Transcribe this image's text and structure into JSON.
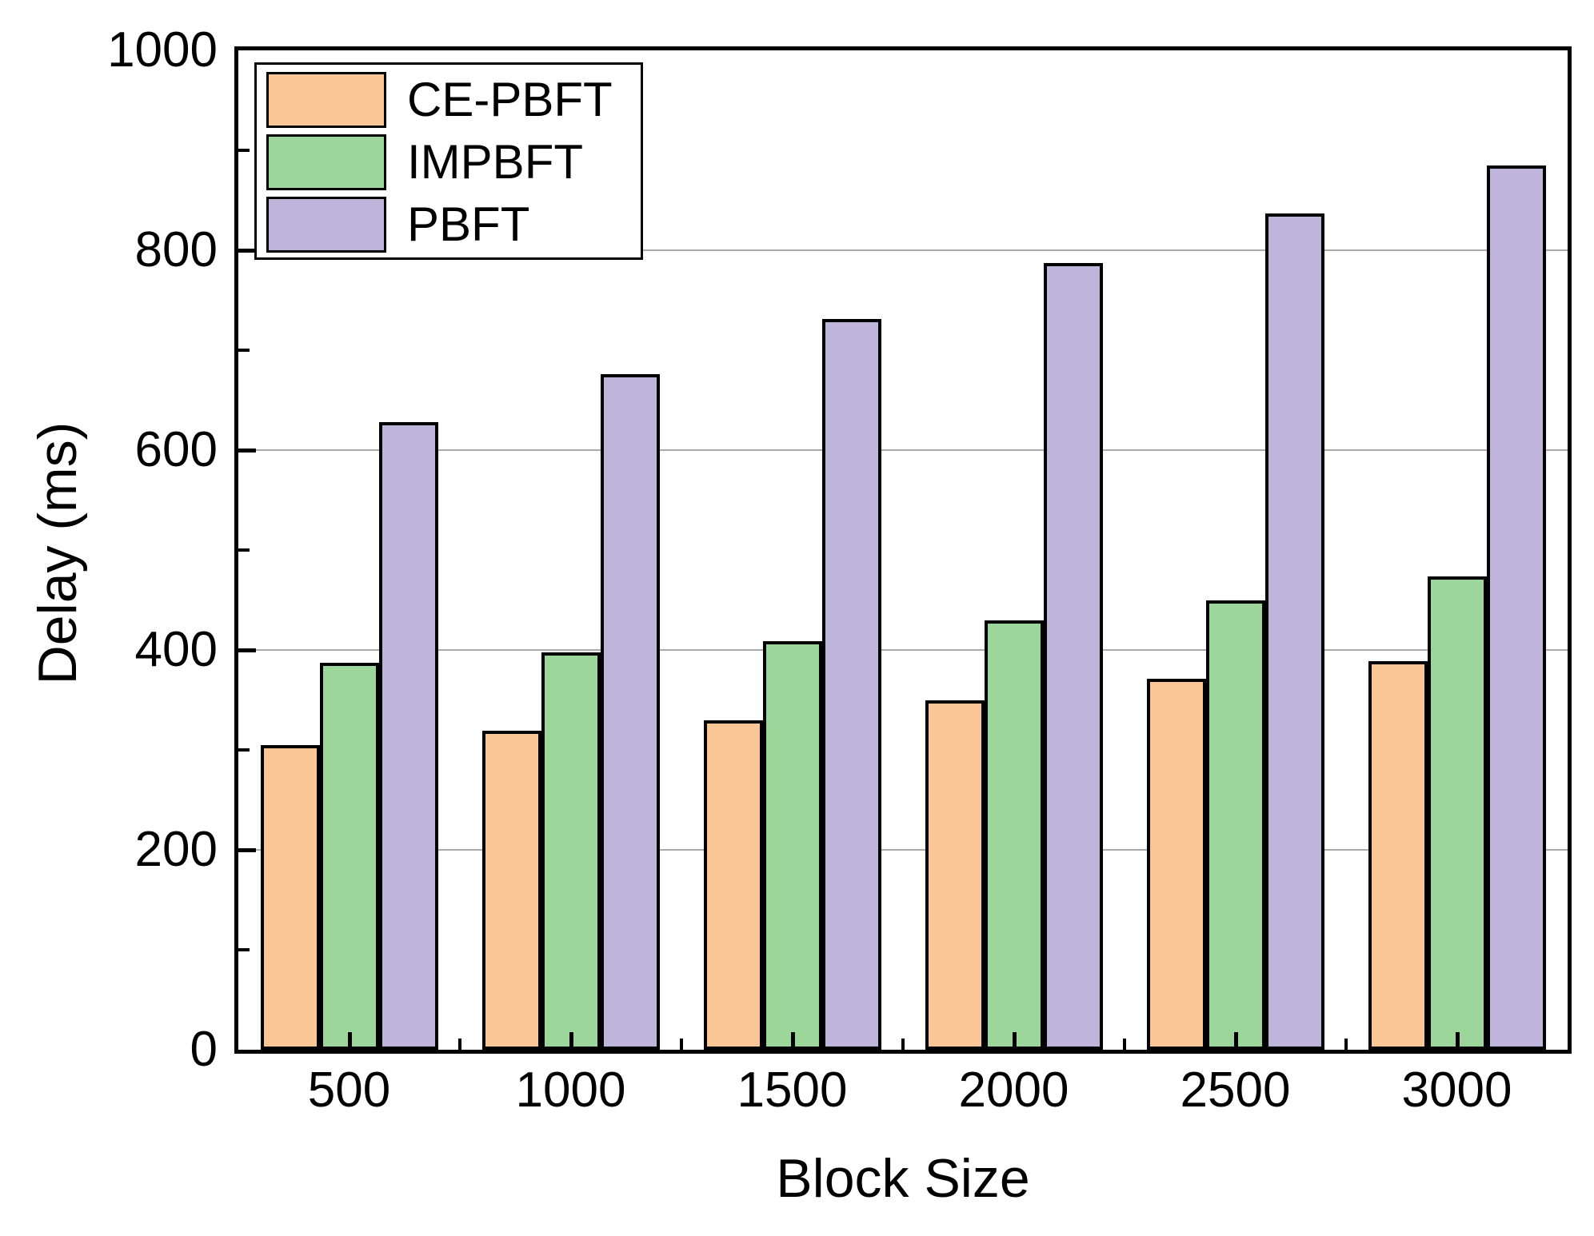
{
  "chart_data": {
    "type": "bar",
    "title": "",
    "xlabel": "Block Size",
    "ylabel": "Delay (ms)",
    "categories": [
      "500",
      "1000",
      "1500",
      "2000",
      "2500",
      "3000"
    ],
    "series": [
      {
        "name": "CE-PBFT",
        "color": "#FBC695",
        "values": [
          305,
          319,
          330,
          350,
          371,
          389
        ]
      },
      {
        "name": "IMPBFT",
        "color": "#9CD69B",
        "values": [
          387,
          398,
          409,
          430,
          450,
          474
        ]
      },
      {
        "name": "PBFT",
        "color": "#BFB5DA",
        "values": [
          628,
          676,
          731,
          787,
          837,
          885
        ]
      }
    ],
    "ylim": [
      0,
      1000
    ],
    "y_major_ticks": [
      0,
      200,
      400,
      600,
      800,
      1000
    ],
    "y_minor_step": 100,
    "grid": "horizontal-major-only",
    "gridline_color": "#a9a9a9",
    "bar_border_color": "#000000",
    "frame_color": "#000000",
    "tick_direction": "in",
    "legend_position": "top-left"
  }
}
